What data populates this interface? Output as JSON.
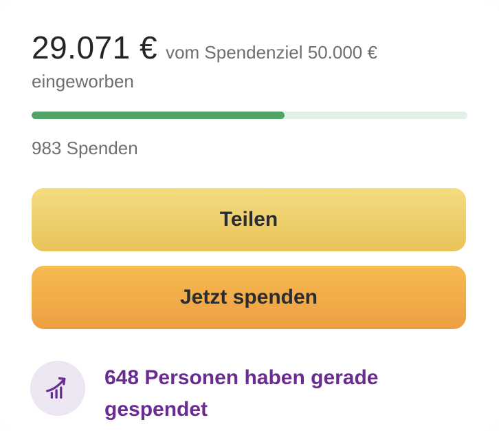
{
  "header": {
    "amount_raised": "29.071 €",
    "goal_text": "vom Spendenziel 50.000 €",
    "raised_suffix": "eingeworben"
  },
  "progress": {
    "percent": 58.1,
    "fill_color": "#53a268",
    "track_color": "#e2f1e7"
  },
  "stats": {
    "donation_count": "983 Spenden"
  },
  "buttons": {
    "share_label": "Teilen",
    "donate_label": "Jetzt spenden"
  },
  "activity": {
    "message": "648 Personen haben gerade gespendet",
    "icon": "trending-up-icon",
    "text_color": "#6b2c91",
    "icon_bg": "#ece7f2",
    "icon_color": "#662d91"
  },
  "button_colors": {
    "share_gradient_top": "#f4dc81",
    "share_gradient_bottom": "#e9c35a",
    "donate_gradient_top": "#f6bb51",
    "donate_gradient_bottom": "#ee9e42"
  }
}
